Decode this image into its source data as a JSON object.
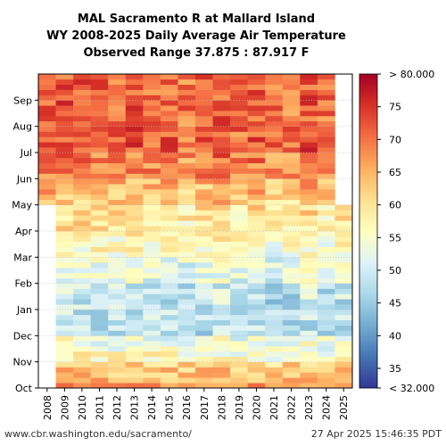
{
  "chart_data": {
    "type": "heatmap",
    "title_lines": [
      "MAL Sacramento R at Mallard Island",
      "WY 2008-2025 Daily Average Air Temperature",
      "Observed Range 37.875 : 87.917 F"
    ],
    "x_categories": [
      "2008",
      "2009",
      "2010",
      "2011",
      "2012",
      "2013",
      "2014",
      "2015",
      "2016",
      "2017",
      "2018",
      "2019",
      "2020",
      "2021",
      "2022",
      "2023",
      "2024",
      "2025"
    ],
    "y_months": [
      "Oct",
      "Nov",
      "Dec",
      "Jan",
      "Feb",
      "Mar",
      "Apr",
      "May",
      "Jun",
      "Jul",
      "Aug",
      "Sep"
    ],
    "value_range": [
      32,
      80
    ],
    "observed_range": [
      37.875,
      87.917
    ],
    "colorbar_ticks": [
      "> 80.000",
      "75",
      "70",
      "65",
      "60",
      "55",
      "50",
      "45",
      "40",
      "35",
      "< 32.000"
    ],
    "colorbar_tick_values": [
      80,
      75,
      70,
      65,
      60,
      55,
      50,
      45,
      40,
      35,
      32
    ],
    "colormap": [
      "#313695",
      "#4575b4",
      "#74add1",
      "#abd9e9",
      "#e0f3f8",
      "#ffffbf",
      "#fee090",
      "#fdae61",
      "#f46d43",
      "#d73027",
      "#a50026"
    ],
    "data_coverage": {
      "2008": {
        "start": "May",
        "end": "Sep"
      },
      "2025": {
        "start": "Oct",
        "end": "Apr"
      }
    },
    "monthly_typical_temperature_F": {
      "Oct": 66,
      "Nov": 57,
      "Dec": 48,
      "Jan": 48,
      "Feb": 52,
      "Mar": 56,
      "Apr": 59,
      "May": 63,
      "Jun": 68,
      "Jul": 72,
      "Aug": 71,
      "Sep": 71
    },
    "grid": true
  },
  "footer": {
    "source": "www.cbr.washington.edu/sacramento/",
    "timestamp": "27 Apr 2025 15:46:35 PDT"
  }
}
